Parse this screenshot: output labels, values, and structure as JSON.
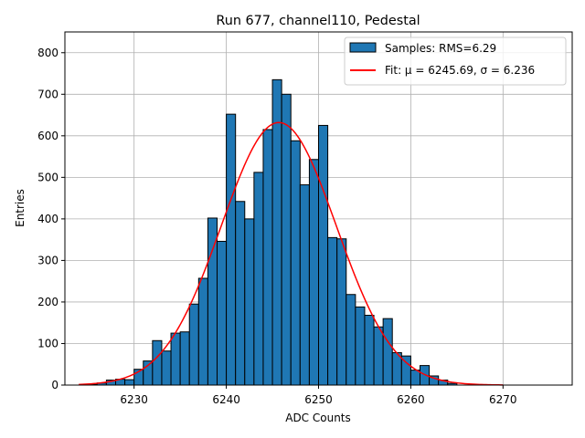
{
  "chart_data": {
    "type": "bar",
    "title": "Run 677, channel110, Pedestal",
    "xlabel": "ADC Counts",
    "ylabel": "Entries",
    "xlim": [
      6222.5,
      6277.5
    ],
    "ylim": [
      0,
      850
    ],
    "xticks": [
      6230,
      6240,
      6250,
      6260,
      6270
    ],
    "yticks": [
      0,
      100,
      200,
      300,
      400,
      500,
      600,
      700,
      800
    ],
    "grid": true,
    "legend_position": "top-right",
    "bin_width": 1,
    "bin_left_edges": [
      6224,
      6225,
      6226,
      6227,
      6228,
      6229,
      6230,
      6231,
      6232,
      6233,
      6234,
      6235,
      6236,
      6237,
      6238,
      6239,
      6240,
      6241,
      6242,
      6243,
      6244,
      6245,
      6246,
      6247,
      6248,
      6249,
      6250,
      6251,
      6252,
      6253,
      6254,
      6255,
      6256,
      6257,
      6258,
      6259,
      6260,
      6261,
      6262,
      6263,
      6264
    ],
    "series": [
      {
        "name": "Samples: RMS=6.29",
        "kind": "histogram",
        "color": "#1f77b4",
        "edge_color": "#000000",
        "values": [
          0,
          2,
          5,
          12,
          14,
          13,
          38,
          58,
          107,
          82,
          125,
          128,
          195,
          257,
          402,
          346,
          652,
          442,
          400,
          512,
          615,
          735,
          700,
          588,
          482,
          543,
          625,
          355,
          352,
          218,
          188,
          168,
          140,
          160,
          78,
          70,
          36,
          47,
          22,
          12,
          4
        ]
      },
      {
        "name": "Fit: μ = 6245.69, σ = 6.236",
        "kind": "gaussian-fit",
        "color": "#ff0000",
        "mu": 6245.69,
        "sigma": 6.236,
        "amplitude": 632,
        "x_range": [
          6224,
          6270
        ]
      }
    ]
  }
}
